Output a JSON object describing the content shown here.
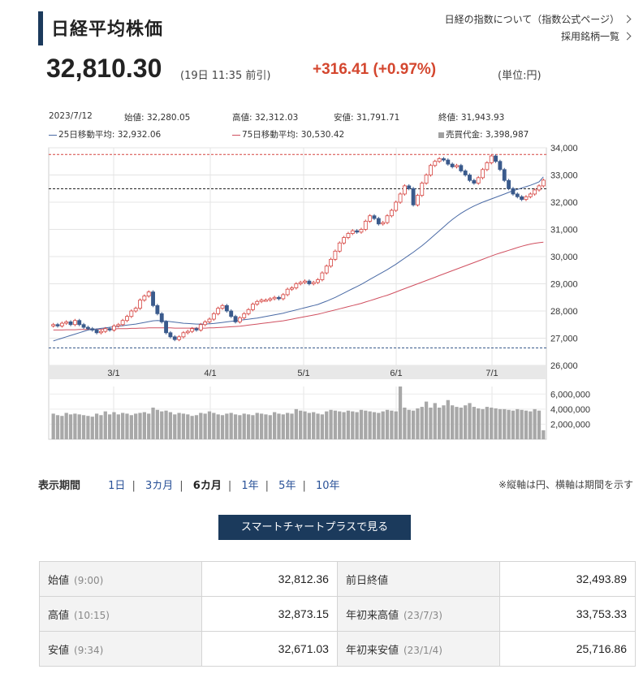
{
  "header": {
    "title": "日経平均株価",
    "link_about": "日経の指数について（指数公式ページ）",
    "link_members": "採用銘柄一覧"
  },
  "quote": {
    "price": "32,810.30",
    "time": "(19日 11:35 前引)",
    "change": "+316.41 (+0.97%)",
    "unit": "(単位:円)"
  },
  "ohlc_info": {
    "date": "2023/7/12",
    "open": "始値: 32,280.05",
    "high": "高値: 32,312.03",
    "low": "安値: 31,791.71",
    "close": "終値: 31,943.93"
  },
  "legend": {
    "ma25": "25日移動平均: 32,932.06",
    "ma75": "75日移動平均: 30,530.42",
    "volume": "売買代金: 3,398,987"
  },
  "chart_data": {
    "type": "candlestick",
    "ylim": [
      26000,
      34000
    ],
    "y_ticks": [
      "34,000",
      "33,000",
      "32,000",
      "31,000",
      "30,000",
      "29,000",
      "28,000",
      "27,000",
      "26,000"
    ],
    "x_ticks": [
      "3/1",
      "4/1",
      "5/1",
      "6/1",
      "7/1"
    ],
    "volume_ticks": [
      "6,000,000",
      "4,000,000",
      "2,000,000"
    ],
    "volume_ylim": [
      0,
      7000000
    ],
    "ref_lines": {
      "red_dashed": 33753,
      "black_dashed": 32494,
      "blue_dashed": 26640
    },
    "colors": {
      "up": "#d64541",
      "down": "#3a5a8c",
      "ma25": "#4a6aa5",
      "ma75": "#d05060",
      "volume": "#a8a8a8"
    },
    "series": [
      {
        "name": "price",
        "values": [
          27500,
          27450,
          27550,
          27600,
          27500,
          27650,
          27500,
          27400,
          27350,
          27300,
          27200,
          27250,
          27350,
          27300,
          27450,
          27500,
          27650,
          27800,
          28000,
          28100,
          28400,
          28550,
          28700,
          28200,
          27900,
          27600,
          27200,
          27050,
          26950,
          27050,
          27200,
          27250,
          27350,
          27300,
          27500,
          27600,
          27700,
          27900,
          28100,
          28200,
          28000,
          27800,
          27600,
          27750,
          27900,
          28050,
          28250,
          28350,
          28400,
          28400,
          28450,
          28500,
          28450,
          28600,
          28800,
          28850,
          29000,
          29050,
          29100,
          29000,
          29050,
          29150,
          29400,
          29650,
          29900,
          30200,
          30500,
          30700,
          30850,
          30950,
          30900,
          31000,
          31300,
          31500,
          31400,
          31200,
          31250,
          31500,
          31700,
          32000,
          32300,
          32600,
          32500,
          31900,
          32250,
          32700,
          33000,
          33350,
          33500,
          33600,
          33550,
          33400,
          33300,
          33350,
          33150,
          33000,
          32800,
          32700,
          32900,
          33200,
          33450,
          33700,
          33500,
          33200,
          32800,
          32500,
          32300,
          32200,
          32100,
          32200,
          32300,
          32450,
          32600,
          32810
        ]
      },
      {
        "name": "ma25",
        "values": [
          26900,
          26950,
          27000,
          27050,
          27100,
          27150,
          27200,
          27250,
          27300,
          27320,
          27340,
          27360,
          27380,
          27400,
          27420,
          27440,
          27460,
          27480,
          27500,
          27520,
          27550,
          27580,
          27610,
          27640,
          27650,
          27640,
          27630,
          27610,
          27590,
          27570,
          27550,
          27540,
          27530,
          27520,
          27520,
          27520,
          27530,
          27540,
          27560,
          27580,
          27600,
          27620,
          27640,
          27660,
          27680,
          27700,
          27720,
          27740,
          27770,
          27800,
          27830,
          27860,
          27890,
          27920,
          27960,
          28000,
          28040,
          28080,
          28120,
          28160,
          28200,
          28240,
          28300,
          28360,
          28430,
          28500,
          28580,
          28660,
          28740,
          28820,
          28900,
          28980,
          29070,
          29160,
          29250,
          29340,
          29430,
          29520,
          29620,
          29720,
          29830,
          29940,
          30050,
          30160,
          30280,
          30400,
          30530,
          30670,
          30810,
          30950,
          31090,
          31230,
          31360,
          31480,
          31590,
          31690,
          31780,
          31860,
          31930,
          32000,
          32060,
          32120,
          32180,
          32240,
          32300,
          32360,
          32420,
          32470,
          32520,
          32570,
          32620,
          32680,
          32750,
          32932
        ]
      },
      {
        "name": "ma75",
        "values": [
          27300,
          27300,
          27300,
          27310,
          27310,
          27310,
          27320,
          27320,
          27320,
          27330,
          27330,
          27330,
          27340,
          27340,
          27340,
          27350,
          27350,
          27350,
          27360,
          27360,
          27370,
          27370,
          27380,
          27380,
          27380,
          27380,
          27380,
          27380,
          27370,
          27370,
          27370,
          27370,
          27370,
          27370,
          27370,
          27370,
          27380,
          27380,
          27390,
          27400,
          27410,
          27420,
          27430,
          27440,
          27460,
          27480,
          27500,
          27520,
          27540,
          27560,
          27580,
          27600,
          27620,
          27640,
          27670,
          27700,
          27730,
          27760,
          27790,
          27820,
          27850,
          27880,
          27920,
          27960,
          28000,
          28040,
          28080,
          28120,
          28160,
          28200,
          28240,
          28280,
          28330,
          28380,
          28430,
          28480,
          28530,
          28580,
          28640,
          28700,
          28760,
          28820,
          28880,
          28940,
          29000,
          29060,
          29120,
          29180,
          29240,
          29300,
          29360,
          29420,
          29480,
          29540,
          29600,
          29660,
          29720,
          29780,
          29840,
          29900,
          29960,
          30020,
          30080,
          30130,
          30180,
          30230,
          30280,
          30330,
          30380,
          30420,
          30460,
          30490,
          30510,
          30530
        ]
      },
      {
        "name": "volume",
        "values": [
          3400000,
          3200000,
          3100000,
          3500000,
          3300000,
          3400000,
          3300000,
          3200000,
          3100000,
          3000000,
          3400000,
          3200000,
          3700000,
          3300000,
          3600000,
          3300000,
          3500000,
          3400000,
          3200000,
          3400000,
          3500000,
          3600000,
          3400000,
          4200000,
          3900000,
          3700000,
          3800000,
          3600000,
          3300000,
          3500000,
          3400000,
          3300000,
          3100000,
          3200000,
          3500000,
          3400000,
          3700000,
          3500000,
          3300000,
          3200000,
          3400000,
          3500000,
          3300000,
          3200000,
          3400000,
          3300000,
          3200000,
          3500000,
          3400000,
          3300000,
          3200000,
          3600000,
          3400000,
          3300000,
          3500000,
          3400000,
          4000000,
          3800000,
          3700000,
          3500000,
          3600000,
          3400000,
          3300000,
          3700000,
          3900000,
          3800000,
          3700000,
          3600000,
          3800000,
          3700000,
          3600000,
          3900000,
          3800000,
          3700000,
          3600000,
          3500000,
          3700000,
          3900000,
          3800000,
          3700000,
          7000000,
          4200000,
          3900000,
          3800000,
          4100000,
          4300000,
          5000000,
          4200000,
          4800000,
          4200000,
          4500000,
          5200000,
          4500000,
          4300000,
          4200000,
          4500000,
          4800000,
          4300000,
          4100000,
          4000000,
          4300000,
          4200000,
          4100000,
          4000000,
          4000000,
          3900000,
          3800000,
          4000000,
          3900000,
          3800000,
          3700000,
          4000000,
          3800000,
          1200000
        ]
      }
    ]
  },
  "period": {
    "label": "表示期間",
    "options": [
      "1日",
      "3カ月",
      "6カ月",
      "1年",
      "5年",
      "10年"
    ],
    "active": "6カ月",
    "note": "※縦軸は円、横軸は期間を示す"
  },
  "smart_chart_button": "スマートチャートプラスで見る",
  "stats": {
    "rows": [
      {
        "k1": "始値",
        "s1": "(9:00)",
        "v1": "32,812.36",
        "k2": "前日終値",
        "s2": "",
        "v2": "32,493.89"
      },
      {
        "k1": "高値",
        "s1": "(10:15)",
        "v1": "32,873.15",
        "k2": "年初来高値",
        "s2": "(23/7/3)",
        "v2": "33,753.33"
      },
      {
        "k1": "安値",
        "s1": "(9:34)",
        "v1": "32,671.03",
        "k2": "年初来安値",
        "s2": "(23/1/4)",
        "v2": "25,716.86"
      }
    ]
  }
}
